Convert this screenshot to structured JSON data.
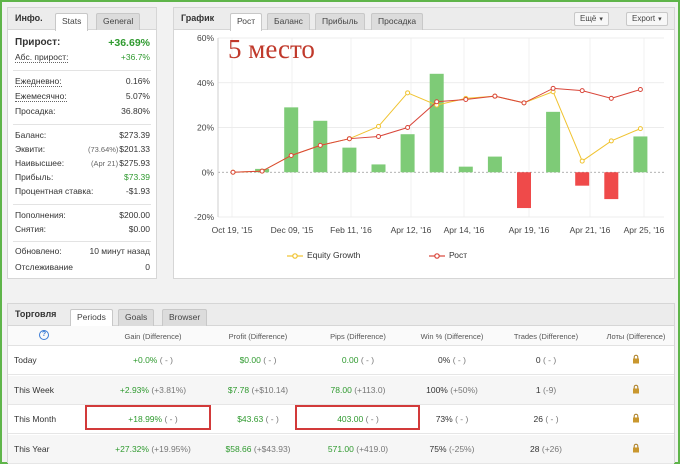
{
  "info_panel": {
    "title": "Инфо.",
    "tabs": [
      "Stats",
      "General"
    ],
    "gain_label": "Прирост:",
    "gain_value": "+36.69%",
    "abs_gain_label": "Абс. прирост:",
    "abs_gain_value": "+36.7%",
    "daily_label": "Ежедневно:",
    "daily_value": "0.16%",
    "monthly_label": "Ежемесячно:",
    "monthly_value": "5.07%",
    "drawdown_label": "Просадка:",
    "drawdown_value": "36.80%",
    "balance_label": "Баланс:",
    "balance_value": "$273.39",
    "equity_label": "Эквити:",
    "equity_pct": "(73.64%)",
    "equity_value": "$201.33",
    "highest_label": "Наивысшее:",
    "highest_date": "(Apr 21)",
    "highest_value": "$275.93",
    "profit_label": "Прибыль:",
    "profit_value": "$73.39",
    "interest_label": "Процентная ставка:",
    "interest_value": "-$1.93",
    "deposits_label": "Пополнения:",
    "deposits_value": "$200.00",
    "withdrawals_label": "Снятия:",
    "withdrawals_value": "$0.00",
    "updated_label": "Обновлено:",
    "updated_value": "10 минут назад",
    "tracking_label": "Отслеживание",
    "tracking_value": "0"
  },
  "chart_panel": {
    "title": "График",
    "tabs": [
      "Рост",
      "Баланс",
      "Прибыль",
      "Просадка"
    ],
    "more_button": "Ещё",
    "export_button": "Export",
    "overlay_text": "5 место",
    "legend": [
      "Equity Growth",
      "Рост"
    ]
  },
  "colors": {
    "bar_positive": "#7ecb77",
    "bar_negative": "#ef4a4a",
    "equity_line": "#f0c330",
    "growth_line": "#d9463a",
    "frame": "#5fb54a",
    "highlight": "#d23a3a"
  },
  "chart_data": {
    "type": "bar",
    "ylim": [
      -20,
      60
    ],
    "y_ticks": [
      "60%",
      "40%",
      "20%",
      "0%",
      "-20%"
    ],
    "y_tick_values": [
      60,
      40,
      20,
      0,
      -20
    ],
    "x_tick_labels": [
      "Oct 19, '15",
      "Dec 09, '15",
      "Feb 11, '16",
      "Apr 12, '16",
      "Apr 14, '16",
      "Apr 19, '16",
      "Apr 21, '16",
      "Apr 25, '16"
    ],
    "series": [
      {
        "name": "bars",
        "values": [
          0,
          1.5,
          29,
          23,
          11,
          3.5,
          17,
          44,
          2.5,
          7,
          -16,
          27,
          -6,
          -12,
          16
        ]
      },
      {
        "name": "Equity Growth",
        "values": [
          0,
          0.5,
          7.5,
          12,
          15,
          20.5,
          35.5,
          30,
          33,
          34,
          31,
          36,
          5,
          14,
          19.5
        ]
      },
      {
        "name": "Рост",
        "values": [
          0,
          0.5,
          7.5,
          12,
          15,
          16,
          20,
          31.5,
          32.5,
          34,
          31,
          37.5,
          36.5,
          33,
          37
        ]
      }
    ]
  },
  "trading_panel": {
    "title": "Торговля",
    "tabs": [
      "Periods",
      "Goals",
      "Browser"
    ],
    "columns": [
      "Gain (Difference)",
      "Profit (Difference)",
      "Pips (Difference)",
      "Win % (Difference)",
      "Trades (Difference)",
      "Лоты (Difference)"
    ],
    "rows": [
      {
        "label": "Today",
        "gain": "+0.0%",
        "gain_diff": "( - )",
        "profit": "$0.00",
        "profit_diff": "( - )",
        "pips": "0.00",
        "pips_diff": "( - )",
        "win": "0%",
        "win_diff": "( - )",
        "trades": "0",
        "trades_diff": "( - )"
      },
      {
        "label": "This Week",
        "gain": "+2.93%",
        "gain_diff": "(+3.81%)",
        "profit": "$7.78",
        "profit_diff": "(+$10.14)",
        "pips": "78.00",
        "pips_diff": "(+113.0)",
        "win": "100%",
        "win_diff": "(+50%)",
        "trades": "1",
        "trades_diff": "(-9)"
      },
      {
        "label": "This Month",
        "gain": "+18.99%",
        "gain_diff": "( - )",
        "profit": "$43.63",
        "profit_diff": "( - )",
        "pips": "403.00",
        "pips_diff": "( - )",
        "win": "73%",
        "win_diff": "( - )",
        "trades": "26",
        "trades_diff": "( - )"
      },
      {
        "label": "This Year",
        "gain": "+27.32%",
        "gain_diff": "(+19.95%)",
        "profit": "$58.66",
        "profit_diff": "(+$43.93)",
        "pips": "571.00",
        "pips_diff": "(+419.0)",
        "win": "75%",
        "win_diff": "(-25%)",
        "trades": "28",
        "trades_diff": "(+26)"
      }
    ]
  }
}
